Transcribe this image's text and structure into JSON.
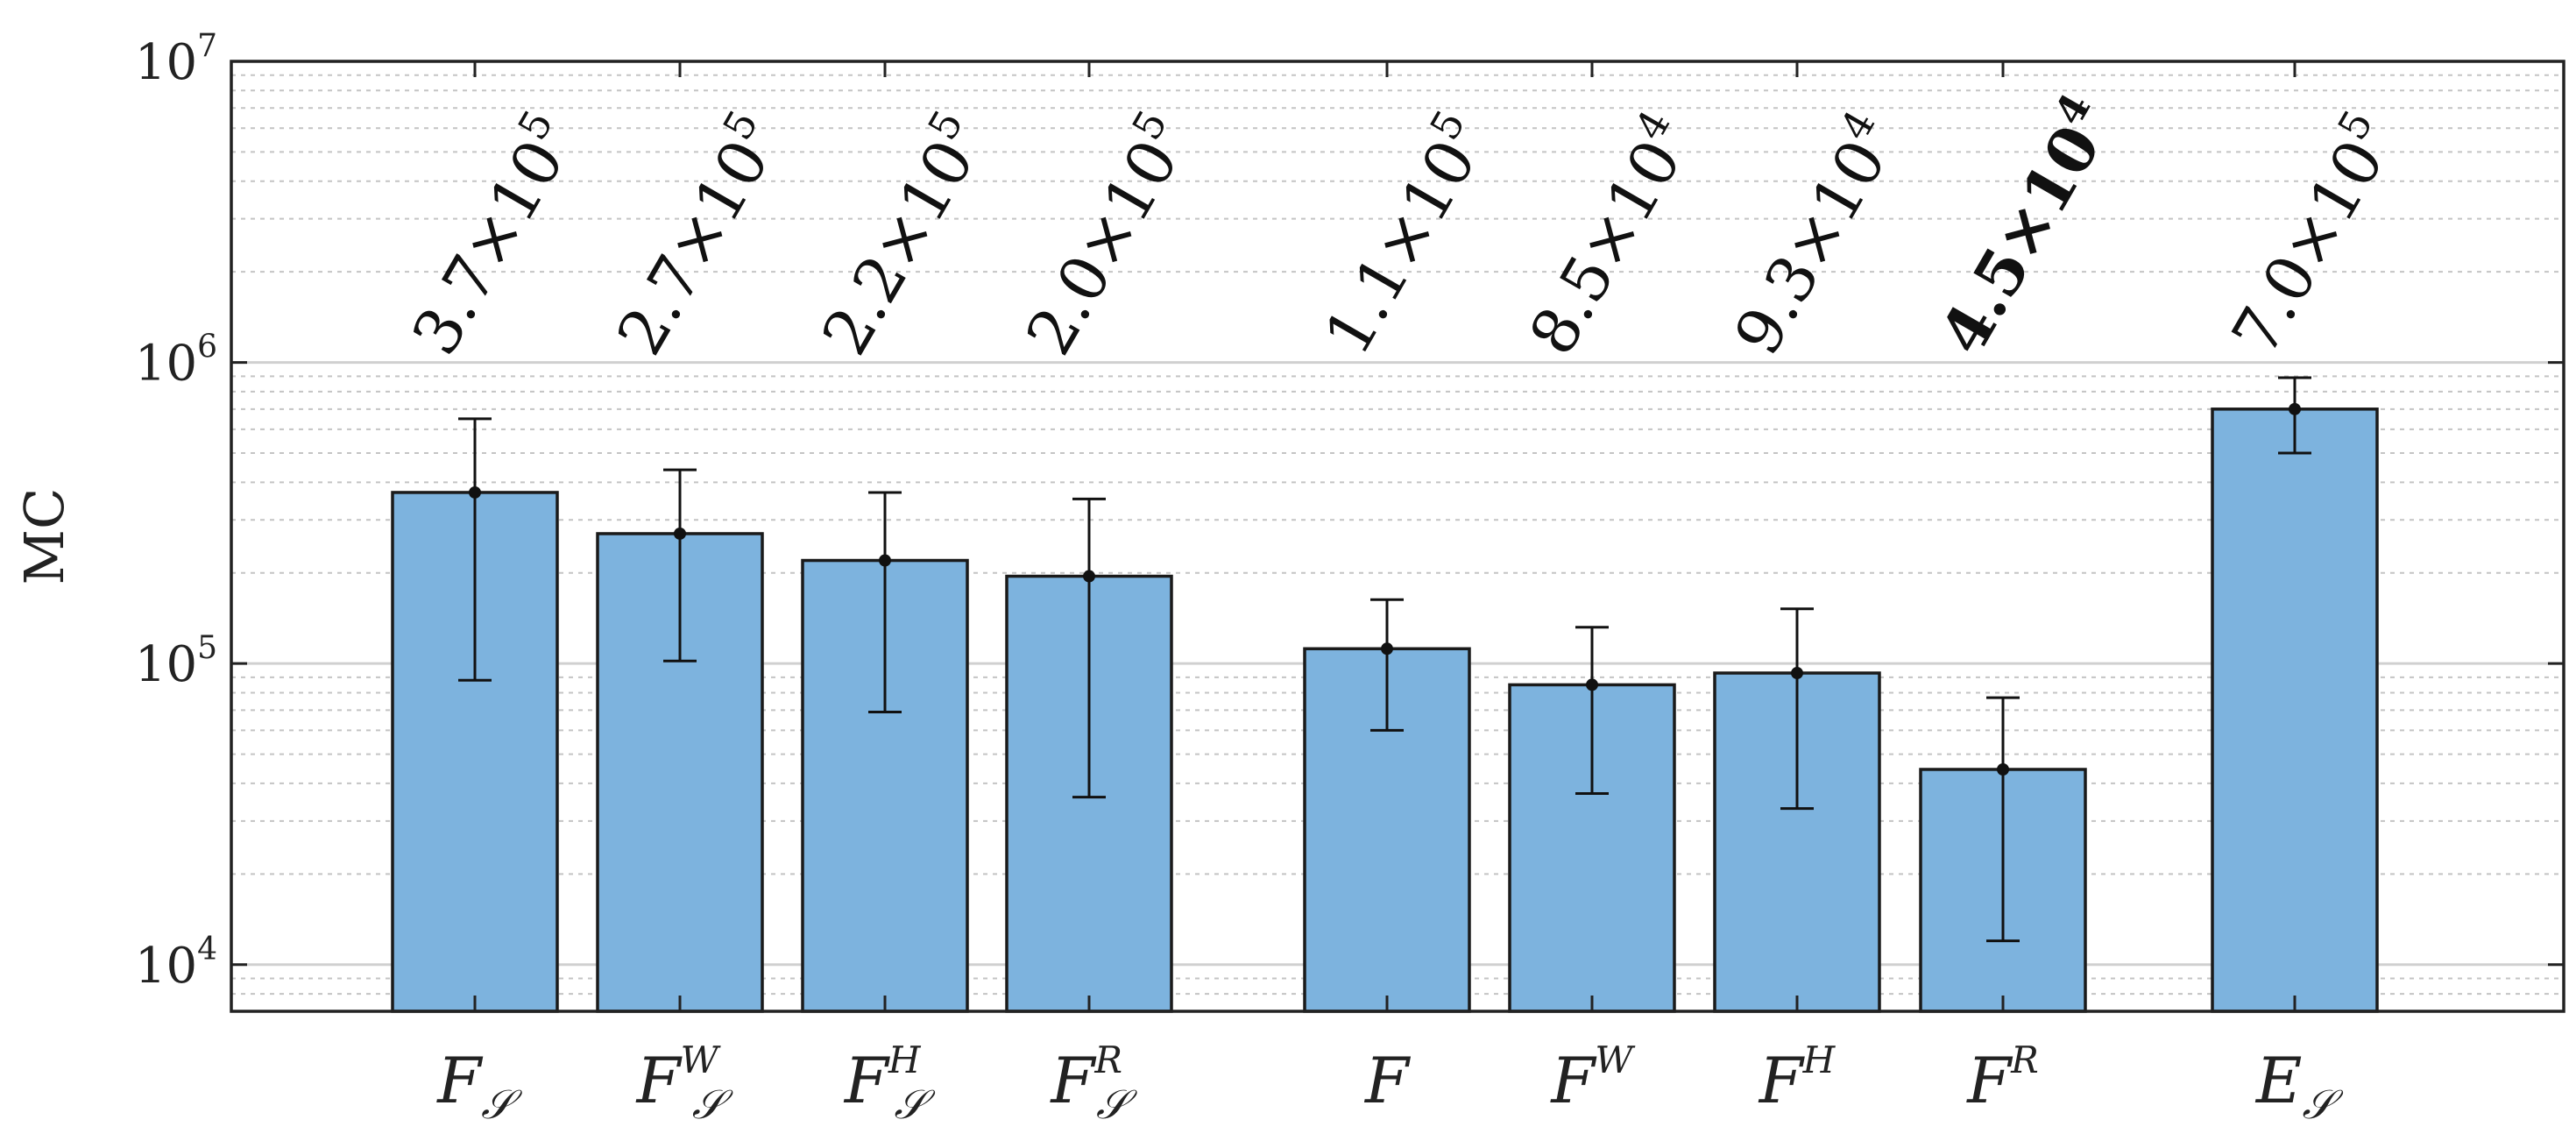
{
  "chart_data": {
    "type": "bar",
    "yscale": "log",
    "ylabel": "MC",
    "xlabel": "",
    "title": "",
    "ylim": [
      7000,
      10000000
    ],
    "y_ticks": [
      {
        "base": "10",
        "exp": "4",
        "value": 10000
      },
      {
        "base": "10",
        "exp": "5",
        "value": 100000
      },
      {
        "base": "10",
        "exp": "6",
        "value": 1000000
      },
      {
        "base": "10",
        "exp": "7",
        "value": 10000000
      }
    ],
    "grid": "major solid, minor dotted",
    "bar_color": "#7db3de",
    "bar_edge": "#1a1a1a",
    "categories": [
      {
        "base": "F",
        "sup": "",
        "sub": "𝒮",
        "value": 370000,
        "err_low": 88000,
        "err_high": 650000,
        "label_mant": "3.7×10",
        "label_exp": "5",
        "bold": false
      },
      {
        "base": "F",
        "sup": "W",
        "sub": "𝒮",
        "value": 270000,
        "err_low": 102000,
        "err_high": 440000,
        "label_mant": "2.7×10",
        "label_exp": "5",
        "bold": false
      },
      {
        "base": "F",
        "sup": "H",
        "sub": "𝒮",
        "value": 220000,
        "err_low": 69000,
        "err_high": 370000,
        "label_mant": "2.2×10",
        "label_exp": "5",
        "bold": false
      },
      {
        "base": "F",
        "sup": "R",
        "sub": "𝒮",
        "value": 195000,
        "err_low": 36000,
        "err_high": 352000,
        "label_mant": "2.0×10",
        "label_exp": "5",
        "bold": false
      },
      {
        "base": "F",
        "sup": "",
        "sub": "",
        "value": 112000,
        "err_low": 60000,
        "err_high": 163000,
        "label_mant": "1.1×10",
        "label_exp": "5",
        "bold": false
      },
      {
        "base": "F",
        "sup": "W",
        "sub": "",
        "value": 85000,
        "err_low": 37000,
        "err_high": 132000,
        "label_mant": "8.5×10",
        "label_exp": "4",
        "bold": false
      },
      {
        "base": "F",
        "sup": "H",
        "sub": "",
        "value": 93000,
        "err_low": 33000,
        "err_high": 152000,
        "label_mant": "9.3×10",
        "label_exp": "4",
        "bold": false
      },
      {
        "base": "F",
        "sup": "R",
        "sub": "",
        "value": 44500,
        "err_low": 12000,
        "err_high": 77000,
        "label_mant": "4.5×10",
        "label_exp": "4",
        "bold": true
      },
      {
        "base": "E",
        "sup": "",
        "sub": "𝒮",
        "value": 700000,
        "err_low": 500000,
        "err_high": 890000,
        "label_mant": "7.0×10",
        "label_exp": "5",
        "bold": false
      }
    ]
  }
}
